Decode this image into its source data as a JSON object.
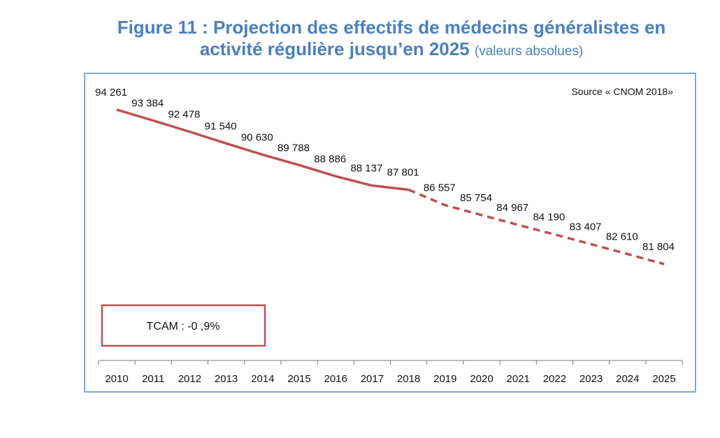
{
  "title": {
    "line1": "Figure 11 : Projection des effectifs de médecins généralistes en",
    "line2": "activité régulière jusqu’en 2025",
    "line2_suffix": "(valeurs absolues)"
  },
  "source": "Source « CNOM 2018»",
  "tcam": "TCAM : -0 ,9%",
  "colors": {
    "title": "#4a7fc1",
    "line": "#c0504d",
    "frame": "#7ea6d4"
  },
  "chart_data": {
    "type": "line",
    "categories": [
      "2010",
      "2011",
      "2012",
      "2013",
      "2014",
      "2015",
      "2016",
      "2017",
      "2018",
      "2019",
      "2020",
      "2021",
      "2022",
      "2023",
      "2024",
      "2025"
    ],
    "values": [
      94261,
      93384,
      92478,
      91540,
      90630,
      89788,
      88886,
      88137,
      87801,
      86557,
      85754,
      84967,
      84190,
      83407,
      82610,
      81804
    ],
    "labels": [
      "94 261",
      "93 384",
      "92 478",
      "91 540",
      "90 630",
      "89 788",
      "88 886",
      "88 137",
      "87 801",
      "86 557",
      "85 754",
      "84 967",
      "84 190",
      "83 407",
      "82 610",
      "81 804"
    ],
    "segments": [
      {
        "style": "solid",
        "from": "2010",
        "to": "2018"
      },
      {
        "style": "dashed",
        "from": "2018",
        "to": "2025"
      }
    ],
    "title": "",
    "xlabel": "",
    "ylabel": "",
    "grid": false,
    "y_axis_visible": false
  }
}
